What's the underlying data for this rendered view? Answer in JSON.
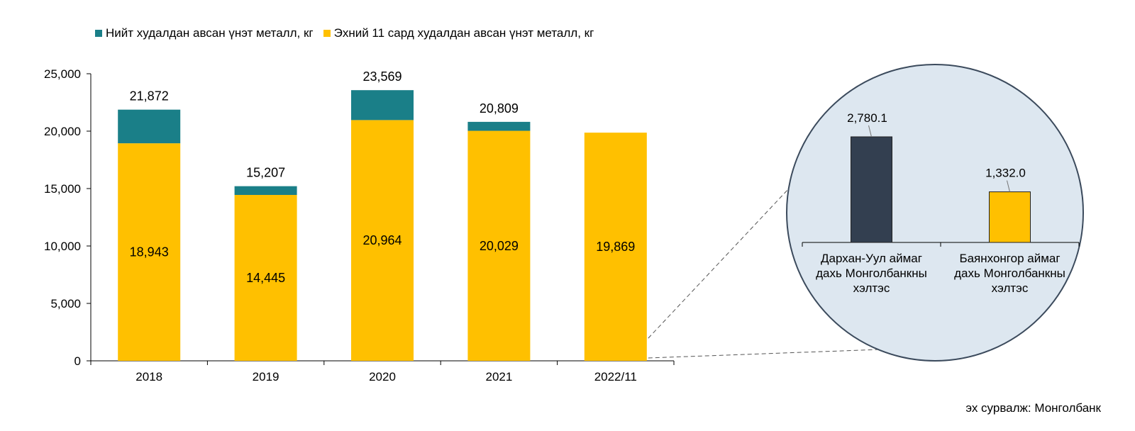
{
  "chart_data": [
    {
      "type": "bar",
      "stacked": true,
      "categories": [
        "2018",
        "2019",
        "2020",
        "2021",
        "2022/11"
      ],
      "series": [
        {
          "name": "Эхний 11 сард худалдан авсан үнэт металл, кг",
          "color": "#FFC000",
          "values": [
            18943,
            14445,
            20964,
            20029,
            19869
          ],
          "labels": [
            "18,943",
            "14,445",
            "20,964",
            "20,029",
            "19,869"
          ]
        },
        {
          "name": "Нийт худалдан авсан үнэт металл, кг",
          "color": "#1A7F88",
          "totals": [
            21872,
            15207,
            23569,
            20809,
            null
          ],
          "labels": [
            "21,872",
            "15,207",
            "23,569",
            "20,809",
            null
          ]
        }
      ],
      "ylim": [
        0,
        25000
      ],
      "yticks": [
        0,
        5000,
        10000,
        15000,
        20000,
        25000
      ],
      "ytick_labels": [
        "0",
        "5,000",
        "10,000",
        "15,000",
        "20,000",
        "25,000"
      ],
      "legend_position": "top-left",
      "grid": false
    },
    {
      "type": "bar",
      "categories": [
        "Дархан-Уул аймаг дахь Монголбанкны хэлтэс",
        "Баянхонгор аймаг дахь Монголбанкны хэлтэс"
      ],
      "category_lines": [
        [
          "Дархан-Уул аймаг",
          "дахь Монголбанкны",
          "хэлтэс"
        ],
        [
          "Баянхонгор аймаг",
          "дахь Монголбанкны",
          "хэлтэс"
        ]
      ],
      "values": [
        2780.1,
        1332.0
      ],
      "labels": [
        "2,780.1",
        "1,332.0"
      ],
      "colors": [
        "#333F50",
        "#FFC000"
      ],
      "grid": false
    }
  ],
  "legend": {
    "total_label": "Нийт худалдан авсан үнэт металл, кг",
    "total_color": "#1A7F88",
    "eleven_label": "Эхний 11 сард худалдан авсан үнэт металл, кг",
    "eleven_color": "#FFC000"
  },
  "source": "эх сурвалж: Монголбанк"
}
